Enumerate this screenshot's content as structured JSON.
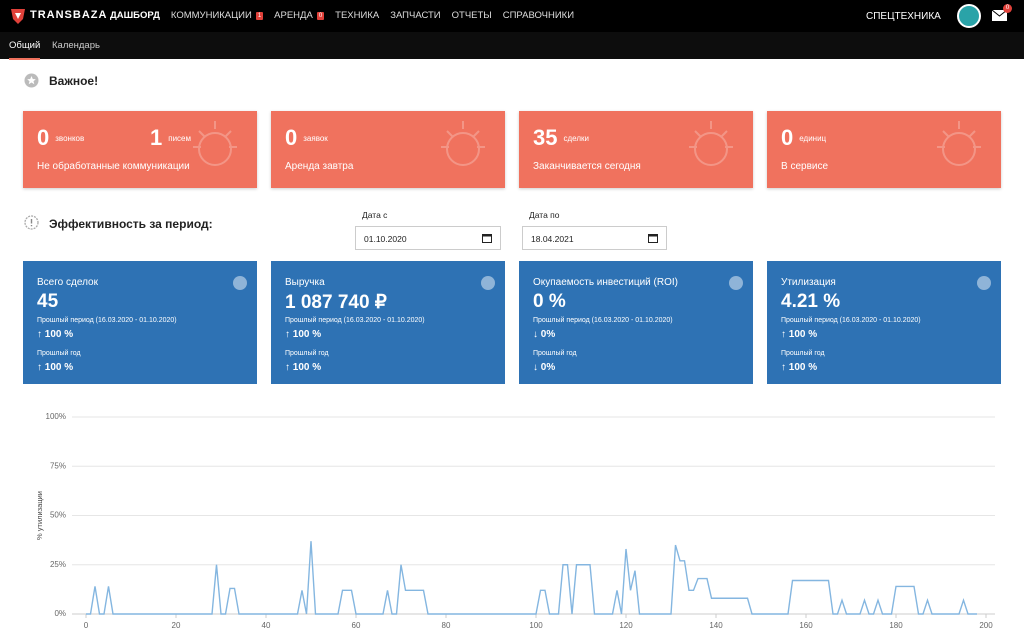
{
  "nav": {
    "logo": "TRANSBAZA",
    "items": [
      {
        "label": "ДАШБОРД"
      },
      {
        "label": "КОММУНИКАЦИИ",
        "badge": "1"
      },
      {
        "label": "АРЕНДА",
        "badge": "0"
      },
      {
        "label": "ТЕХНИКА"
      },
      {
        "label": "ЗАПЧАСТИ"
      },
      {
        "label": "ОТЧЕТЫ"
      },
      {
        "label": "СПРАВОЧНИКИ"
      }
    ],
    "right": "СПЕЦТЕХНИКА",
    "mail_badge": "0"
  },
  "tabs": [
    "Общий",
    "Календарь"
  ],
  "important": {
    "title": "Важное!",
    "cards": [
      {
        "parts": [
          {
            "value": "0",
            "unit": "звонков"
          },
          {
            "value": "1",
            "unit": "писем"
          }
        ],
        "label": "Не обработанные коммуникации"
      },
      {
        "parts": [
          {
            "value": "0",
            "unit": "заявок"
          }
        ],
        "label": "Аренда завтра"
      },
      {
        "parts": [
          {
            "value": "35",
            "unit": "сделки"
          }
        ],
        "label": "Заканчивается сегодня"
      },
      {
        "parts": [
          {
            "value": "0",
            "unit": "единиц"
          }
        ],
        "label": "В сервисе"
      }
    ]
  },
  "efficiency": {
    "title": "Эффективность за период:",
    "date_from": {
      "label": "Дата с",
      "value": "01.10.2020"
    },
    "date_to": {
      "label": "Дата по",
      "value": "18.04.2021"
    },
    "cards": [
      {
        "title": "Всего сделок",
        "value": "45",
        "prev_period_label": "Прошлый период (16.03.2020 - 01.10.2020)",
        "prev_period_change": "↑ 100 %",
        "prev_year_label": "Прошлый год",
        "prev_year_change": "↑ 100 %"
      },
      {
        "title": "Выручка",
        "value": "1 087 740 ₽",
        "prev_period_label": "Прошлый период (16.03.2020 - 01.10.2020)",
        "prev_period_change": "↑ 100 %",
        "prev_year_label": "Прошлый год",
        "prev_year_change": "↑ 100 %"
      },
      {
        "title": "Окупаемость инвестиций (ROI)",
        "value": "0 %",
        "prev_period_label": "Прошлый период (16.03.2020 - 01.10.2020)",
        "prev_period_change": "↓ 0%",
        "prev_year_label": "Прошлый год",
        "prev_year_change": "↓ 0%"
      },
      {
        "title": "Утилизация",
        "value": "4.21 %",
        "prev_period_label": "Прошлый период (16.03.2020 - 01.10.2020)",
        "prev_period_change": "↑ 100 %",
        "prev_year_label": "Прошлый год",
        "prev_year_change": "↑ 100 %"
      }
    ]
  },
  "chart_data": {
    "type": "line",
    "y_label": "% утилизации",
    "color": "#84b6e0",
    "grid": true,
    "x": [
      0,
      1,
      2,
      3,
      4,
      5,
      6,
      28,
      29,
      30,
      31,
      32,
      33,
      34,
      47,
      48,
      49,
      50,
      51,
      56,
      57,
      59,
      60,
      66,
      67,
      68,
      69,
      70,
      71,
      75,
      76,
      100,
      101,
      102,
      103,
      105,
      106,
      107,
      108,
      109,
      112,
      113,
      117,
      118,
      119,
      120,
      121,
      122,
      123,
      130,
      131,
      132,
      133,
      134,
      135,
      136,
      138,
      139,
      147,
      148,
      156,
      157,
      165,
      166,
      167,
      168,
      169,
      172,
      173,
      174,
      175,
      176,
      177,
      179,
      180,
      184,
      185,
      186,
      187,
      188,
      194,
      195,
      196,
      198
    ],
    "values": [
      0,
      0,
      14,
      0,
      0,
      14,
      0,
      0,
      25,
      0,
      0,
      13,
      13,
      0,
      0,
      12,
      0,
      37,
      0,
      0,
      12,
      12,
      0,
      0,
      12,
      0,
      0,
      25,
      12,
      12,
      0,
      0,
      12,
      12,
      0,
      0,
      25,
      25,
      0,
      25,
      25,
      0,
      0,
      12,
      0,
      33,
      12,
      22,
      0,
      0,
      35,
      27,
      27,
      12,
      12,
      18,
      18,
      8,
      8,
      0,
      0,
      17,
      17,
      0,
      0,
      7,
      0,
      0,
      7,
      0,
      0,
      7,
      0,
      0,
      14,
      14,
      0,
      0,
      7,
      0,
      0,
      7,
      0,
      0
    ],
    "xlim": [
      0,
      200
    ],
    "xticks": [
      0,
      20,
      40,
      60,
      80,
      100,
      120,
      140,
      160,
      180,
      200
    ],
    "ylim": [
      0,
      100
    ],
    "yticks": [
      {
        "value": 0,
        "label": "0%"
      },
      {
        "value": 25,
        "label": "25%"
      },
      {
        "value": 50,
        "label": "50%"
      },
      {
        "value": 75,
        "label": "75%"
      },
      {
        "value": 100,
        "label": "100%"
      }
    ]
  }
}
